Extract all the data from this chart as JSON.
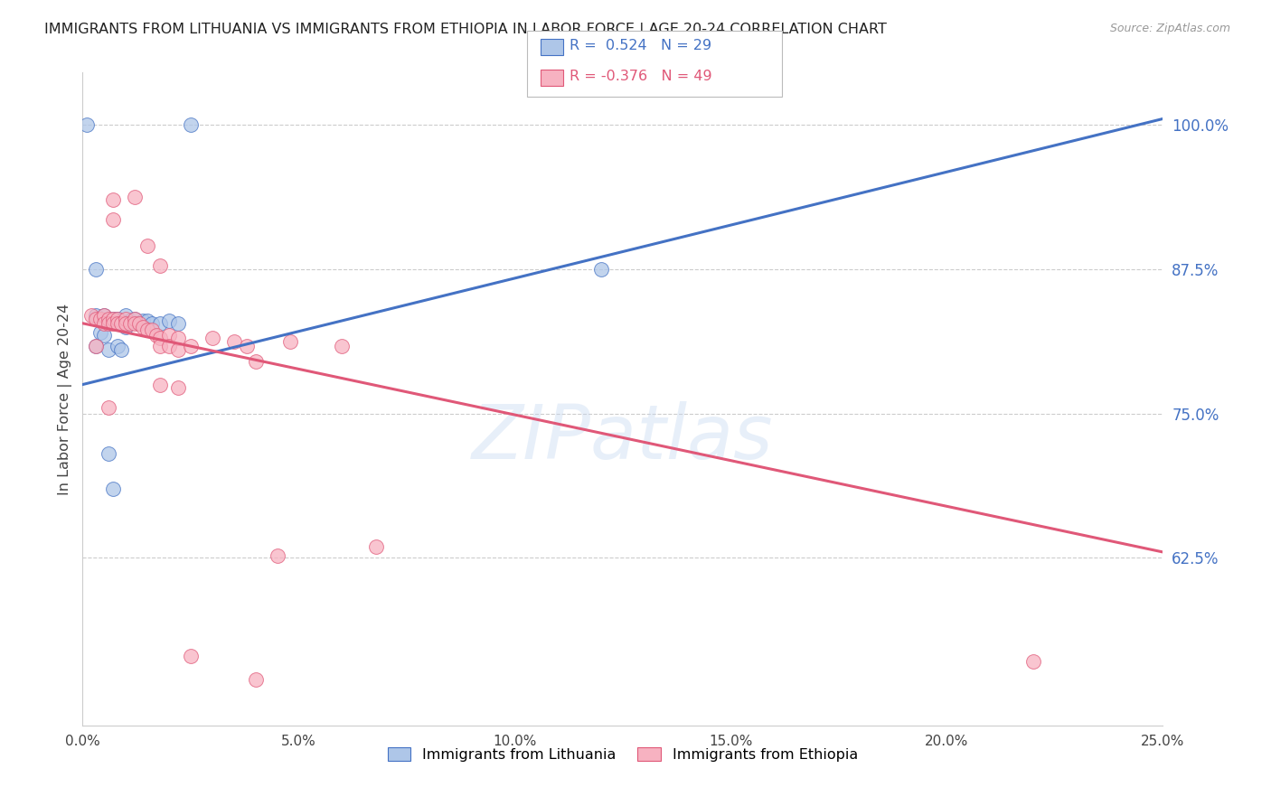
{
  "title": "IMMIGRANTS FROM LITHUANIA VS IMMIGRANTS FROM ETHIOPIA IN LABOR FORCE | AGE 20-24 CORRELATION CHART",
  "source": "Source: ZipAtlas.com",
  "ylabel": "In Labor Force | Age 20-24",
  "xmin": 0.0,
  "xmax": 0.25,
  "ymin": 0.48,
  "ymax": 1.045,
  "yticks": [
    0.625,
    0.75,
    0.875,
    1.0
  ],
  "ytick_labels": [
    "62.5%",
    "75.0%",
    "87.5%",
    "100.0%"
  ],
  "xticks": [
    0.0,
    0.05,
    0.1,
    0.15,
    0.2,
    0.25
  ],
  "xtick_labels": [
    "0.0%",
    "5.0%",
    "10.0%",
    "15.0%",
    "20.0%",
    "25.0%"
  ],
  "legend_R_blue": "R =  0.524",
  "legend_N_blue": "N = 29",
  "legend_R_pink": "R = -0.376",
  "legend_N_pink": "N = 49",
  "legend_label_blue": "Immigrants from Lithuania",
  "legend_label_pink": "Immigrants from Ethiopia",
  "color_blue": "#aec6e8",
  "color_pink": "#f7b2c1",
  "color_line_blue": "#4472c4",
  "color_line_pink": "#e05878",
  "color_title": "#222222",
  "color_yaxis_right": "#4472c4",
  "color_source": "#999999",
  "watermark_text": "ZIPatlas",
  "scatter_blue": [
    [
      0.001,
      1.0
    ],
    [
      0.025,
      1.0
    ],
    [
      0.003,
      0.875
    ],
    [
      0.12,
      0.875
    ],
    [
      0.003,
      0.835
    ],
    [
      0.005,
      0.835
    ],
    [
      0.006,
      0.83
    ],
    [
      0.007,
      0.832
    ],
    [
      0.008,
      0.832
    ],
    [
      0.009,
      0.83
    ],
    [
      0.01,
      0.835
    ],
    [
      0.01,
      0.825
    ],
    [
      0.011,
      0.83
    ],
    [
      0.012,
      0.832
    ],
    [
      0.013,
      0.828
    ],
    [
      0.014,
      0.83
    ],
    [
      0.015,
      0.83
    ],
    [
      0.016,
      0.828
    ],
    [
      0.018,
      0.828
    ],
    [
      0.02,
      0.83
    ],
    [
      0.022,
      0.828
    ],
    [
      0.004,
      0.82
    ],
    [
      0.005,
      0.818
    ],
    [
      0.006,
      0.715
    ],
    [
      0.007,
      0.685
    ],
    [
      0.003,
      0.808
    ],
    [
      0.006,
      0.805
    ],
    [
      0.008,
      0.808
    ],
    [
      0.009,
      0.805
    ]
  ],
  "scatter_pink": [
    [
      0.007,
      0.935
    ],
    [
      0.012,
      0.937
    ],
    [
      0.007,
      0.918
    ],
    [
      0.015,
      0.895
    ],
    [
      0.018,
      0.878
    ],
    [
      0.002,
      0.835
    ],
    [
      0.003,
      0.832
    ],
    [
      0.004,
      0.832
    ],
    [
      0.005,
      0.835
    ],
    [
      0.005,
      0.828
    ],
    [
      0.006,
      0.832
    ],
    [
      0.006,
      0.828
    ],
    [
      0.007,
      0.832
    ],
    [
      0.007,
      0.828
    ],
    [
      0.008,
      0.832
    ],
    [
      0.008,
      0.828
    ],
    [
      0.009,
      0.828
    ],
    [
      0.01,
      0.832
    ],
    [
      0.01,
      0.828
    ],
    [
      0.011,
      0.828
    ],
    [
      0.012,
      0.832
    ],
    [
      0.012,
      0.828
    ],
    [
      0.013,
      0.828
    ],
    [
      0.014,
      0.825
    ],
    [
      0.015,
      0.822
    ],
    [
      0.016,
      0.822
    ],
    [
      0.017,
      0.818
    ],
    [
      0.018,
      0.815
    ],
    [
      0.018,
      0.808
    ],
    [
      0.02,
      0.818
    ],
    [
      0.02,
      0.808
    ],
    [
      0.022,
      0.815
    ],
    [
      0.022,
      0.805
    ],
    [
      0.025,
      0.808
    ],
    [
      0.03,
      0.815
    ],
    [
      0.035,
      0.812
    ],
    [
      0.038,
      0.808
    ],
    [
      0.04,
      0.795
    ],
    [
      0.048,
      0.812
    ],
    [
      0.06,
      0.808
    ],
    [
      0.003,
      0.808
    ],
    [
      0.04,
      0.52
    ],
    [
      0.068,
      0.635
    ],
    [
      0.045,
      0.627
    ],
    [
      0.025,
      0.54
    ],
    [
      0.22,
      0.535
    ],
    [
      0.006,
      0.755
    ],
    [
      0.018,
      0.775
    ],
    [
      0.022,
      0.772
    ]
  ],
  "blue_line_x": [
    0.0,
    0.25
  ],
  "blue_line_y": [
    0.775,
    1.005
  ],
  "pink_line_x": [
    0.0,
    0.25
  ],
  "pink_line_y": [
    0.828,
    0.63
  ]
}
